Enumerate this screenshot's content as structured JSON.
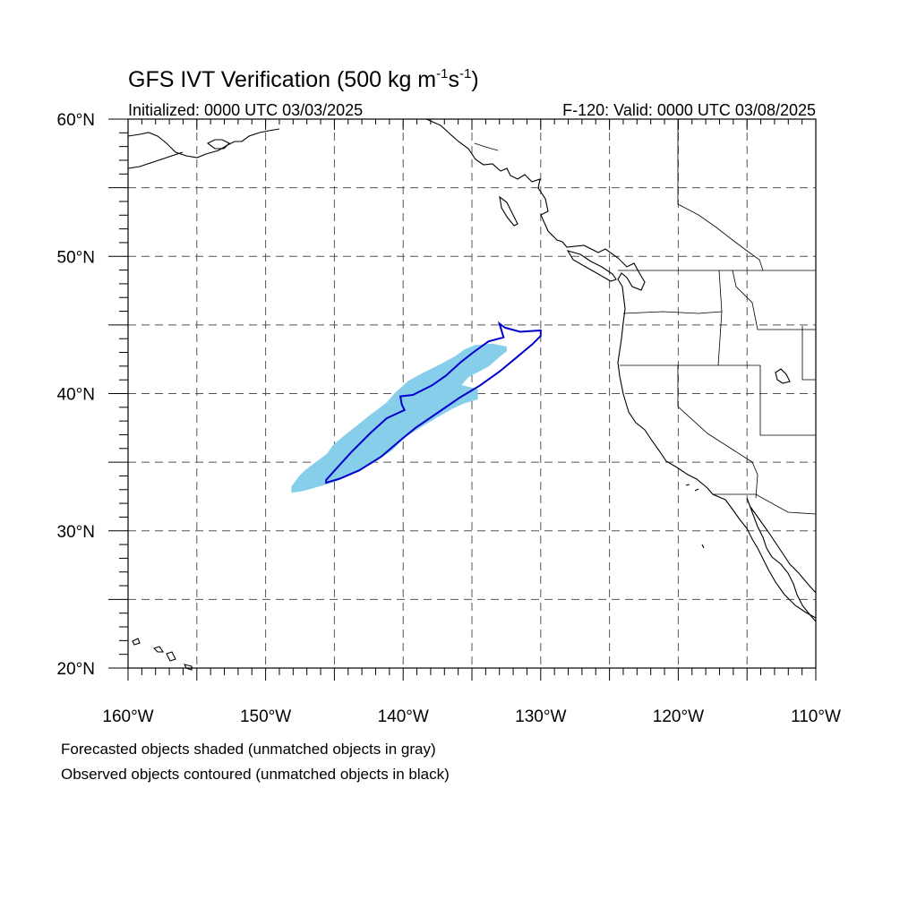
{
  "title": {
    "text": "GFS IVT Verification (500 kg m",
    "exp1": "-1",
    "mid": "s",
    "exp2": "-1",
    "end": ")"
  },
  "initialized": "Initialized: 0000 UTC 03/03/2025",
  "valid": "F-120: Valid: 0000 UTC 03/08/2025",
  "footnotes": [
    "Forecasted objects shaded (unmatched objects in gray)",
    "Observed objects contoured (unmatched objects in black)"
  ],
  "axes": {
    "lon_range": [
      -160,
      -110
    ],
    "lat_range": [
      20,
      60
    ],
    "lon_labels": [
      {
        "lon": -160,
        "label": "160°W"
      },
      {
        "lon": -150,
        "label": "150°W"
      },
      {
        "lon": -140,
        "label": "140°W"
      },
      {
        "lon": -130,
        "label": "130°W"
      },
      {
        "lon": -120,
        "label": "120°W"
      },
      {
        "lon": -110,
        "label": "110°W"
      }
    ],
    "lat_labels": [
      {
        "lat": 60,
        "label": "60°N"
      },
      {
        "lat": 50,
        "label": "50°N"
      },
      {
        "lat": 40,
        "label": "40°N"
      },
      {
        "lat": 30,
        "label": "30°N"
      },
      {
        "lat": 20,
        "label": "20°N"
      }
    ],
    "grid_lons": [
      -155,
      -150,
      -145,
      -140,
      -135,
      -130,
      -125,
      -120,
      -115
    ],
    "grid_lats": [
      25,
      30,
      35,
      40,
      45,
      50,
      55
    ],
    "grid": "dashed"
  },
  "colors": {
    "forecast_fill": "#87ceeb",
    "observed_contour": "#0000cd",
    "coastline": "#000000",
    "grid": "#555555"
  },
  "forecast_object": {
    "label": "matched forecast object",
    "lonlat": [
      [
        -148.1,
        32.8
      ],
      [
        -147.4,
        32.9
      ],
      [
        -146.3,
        33.2
      ],
      [
        -145.0,
        33.6
      ],
      [
        -143.6,
        34.2
      ],
      [
        -142.1,
        35.0
      ],
      [
        -140.8,
        35.9
      ],
      [
        -139.8,
        36.9
      ],
      [
        -139.0,
        37.4
      ],
      [
        -137.7,
        38.2
      ],
      [
        -136.5,
        38.9
      ],
      [
        -135.6,
        39.3
      ],
      [
        -134.6,
        39.6
      ],
      [
        -134.6,
        40.3
      ],
      [
        -135.8,
        40.6
      ],
      [
        -135.3,
        41.2
      ],
      [
        -133.8,
        42.0
      ],
      [
        -132.9,
        42.8
      ],
      [
        -132.5,
        43.1
      ],
      [
        -132.5,
        43.4
      ],
      [
        -133.5,
        43.6
      ],
      [
        -134.8,
        43.5
      ],
      [
        -135.5,
        43.2
      ],
      [
        -136.2,
        42.7
      ],
      [
        -137.3,
        42.1
      ],
      [
        -138.5,
        41.5
      ],
      [
        -139.6,
        40.9
      ],
      [
        -140.6,
        40.0
      ],
      [
        -141.2,
        39.3
      ],
      [
        -142.4,
        38.4
      ],
      [
        -143.4,
        37.6
      ],
      [
        -144.4,
        36.8
      ],
      [
        -145.1,
        36.2
      ],
      [
        -145.5,
        35.6
      ],
      [
        -146.3,
        35.0
      ],
      [
        -147.1,
        34.4
      ],
      [
        -147.6,
        33.9
      ],
      [
        -148.1,
        33.2
      ]
    ]
  },
  "observed_object": {
    "label": "matched observed object",
    "lonlat": [
      [
        -145.6,
        33.5
      ],
      [
        -144.6,
        33.8
      ],
      [
        -143.2,
        34.4
      ],
      [
        -141.6,
        35.4
      ],
      [
        -140.2,
        36.6
      ],
      [
        -139.1,
        37.5
      ],
      [
        -137.5,
        38.6
      ],
      [
        -135.9,
        39.7
      ],
      [
        -134.4,
        40.6
      ],
      [
        -133.0,
        41.6
      ],
      [
        -131.8,
        42.6
      ],
      [
        -130.6,
        43.6
      ],
      [
        -130.0,
        44.2
      ],
      [
        -130.0,
        44.6
      ],
      [
        -131.5,
        44.5
      ],
      [
        -132.6,
        44.8
      ],
      [
        -133.0,
        45.1
      ],
      [
        -132.7,
        44.1
      ],
      [
        -133.8,
        43.8
      ],
      [
        -134.9,
        43.0
      ],
      [
        -135.8,
        42.3
      ],
      [
        -136.9,
        41.3
      ],
      [
        -137.9,
        40.6
      ],
      [
        -139.3,
        39.9
      ],
      [
        -140.2,
        39.8
      ],
      [
        -140.1,
        39.2
      ],
      [
        -139.9,
        38.8
      ],
      [
        -141.2,
        38.2
      ],
      [
        -142.4,
        37.1
      ],
      [
        -143.8,
        35.7
      ],
      [
        -144.8,
        34.6
      ],
      [
        -145.6,
        33.7
      ]
    ]
  }
}
